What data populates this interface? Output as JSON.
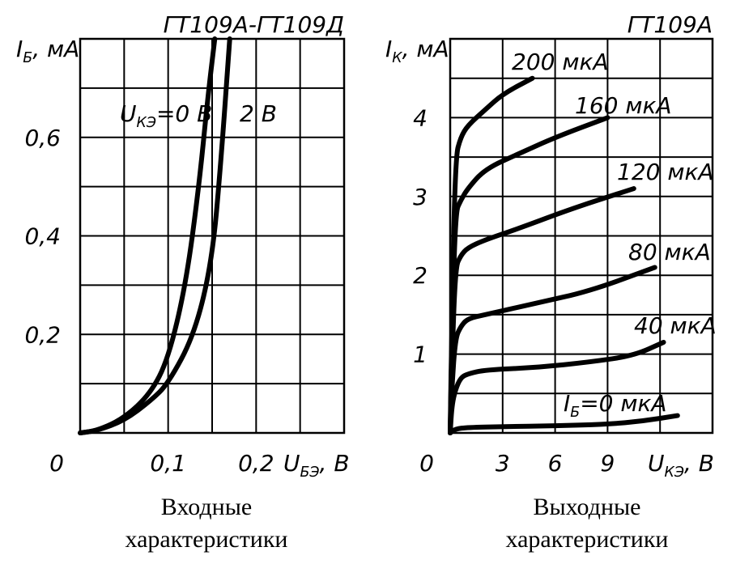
{
  "chart_data": [
    {
      "type": "line",
      "title": "ГТ109А-ГТ109Д",
      "caption_line1": "Входные",
      "caption_line2": "характеристики",
      "ylabel_main": "I",
      "ylabel_sub": "Б",
      "ylabel_unit": ", мА",
      "xlabel_main": "U",
      "xlabel_sub": "БЭ",
      "xlabel_unit": ", В",
      "origin_label": "0",
      "xlim": [
        0,
        0.3
      ],
      "ylim": [
        0,
        0.8
      ],
      "x_ticks": [
        {
          "value": 0.1,
          "label": "0,1"
        },
        {
          "value": 0.2,
          "label": "0,2"
        }
      ],
      "y_ticks": [
        {
          "value": 0.2,
          "label": "0,2"
        },
        {
          "value": 0.4,
          "label": "0,4"
        },
        {
          "value": 0.6,
          "label": "0,6"
        }
      ],
      "grid": true,
      "series": [
        {
          "name": "U_КЭ=0 В",
          "label_main": "U",
          "label_sub": "КЭ",
          "label_rest": "=0 В",
          "x": [
            0.0,
            0.02,
            0.05,
            0.08,
            0.1,
            0.12,
            0.135,
            0.145,
            0.153
          ],
          "y": [
            0.0,
            0.005,
            0.03,
            0.08,
            0.15,
            0.3,
            0.5,
            0.68,
            0.8
          ]
        },
        {
          "name": "2 В",
          "label_main": "2 В",
          "x": [
            0.0,
            0.02,
            0.05,
            0.08,
            0.1,
            0.13,
            0.15,
            0.16,
            0.17
          ],
          "y": [
            0.0,
            0.005,
            0.025,
            0.065,
            0.1,
            0.2,
            0.35,
            0.55,
            0.8
          ]
        }
      ]
    },
    {
      "type": "line",
      "title": "ГТ109А",
      "caption_line1": "Выходные",
      "caption_line2": "характеристики",
      "ylabel_main": "I",
      "ylabel_sub": "К",
      "ylabel_unit": ", мА",
      "xlabel_main": "U",
      "xlabel_sub": "КЭ",
      "xlabel_unit": ", В",
      "origin_label": "0",
      "xlim": [
        0,
        15
      ],
      "ylim": [
        0,
        5
      ],
      "x_ticks": [
        {
          "value": 3,
          "label": "3"
        },
        {
          "value": 6,
          "label": "6"
        },
        {
          "value": 9,
          "label": "9"
        }
      ],
      "y_ticks": [
        {
          "value": 1,
          "label": "1"
        },
        {
          "value": 2,
          "label": "2"
        },
        {
          "value": 3,
          "label": "3"
        },
        {
          "value": 4,
          "label": "4"
        }
      ],
      "grid": true,
      "series": [
        {
          "name": "200 мкА",
          "label_main": "200 мкА",
          "x": [
            0.0,
            0.1,
            0.3,
            0.6,
            1.0,
            2.0,
            3.0,
            4.7
          ],
          "y": [
            0.0,
            1.5,
            3.5,
            3.75,
            3.9,
            4.1,
            4.3,
            4.5
          ]
        },
        {
          "name": "160 мкА",
          "label_main": "160 мкА",
          "x": [
            0.0,
            0.1,
            0.3,
            0.6,
            1.0,
            2.0,
            4.0,
            6.0,
            9.0
          ],
          "y": [
            0.0,
            1.2,
            2.8,
            2.95,
            3.1,
            3.35,
            3.55,
            3.75,
            4.0
          ]
        },
        {
          "name": "120 мкА",
          "label_main": "120 мкА",
          "x": [
            0.0,
            0.1,
            0.3,
            0.6,
            1.0,
            2.0,
            4.0,
            7.0,
            10.5
          ],
          "y": [
            0.0,
            0.9,
            2.1,
            2.25,
            2.35,
            2.45,
            2.6,
            2.85,
            3.1
          ]
        },
        {
          "name": "80 мкА",
          "label_main": "80 мкА",
          "x": [
            0.0,
            0.1,
            0.3,
            0.6,
            1.0,
            2.0,
            5.0,
            8.0,
            11.7
          ],
          "y": [
            0.0,
            0.6,
            1.2,
            1.35,
            1.45,
            1.5,
            1.65,
            1.8,
            2.1
          ]
        },
        {
          "name": "40 мкА",
          "label_main": "40 мкА",
          "x": [
            0.0,
            0.1,
            0.3,
            0.6,
            1.0,
            2.0,
            5.0,
            8.0,
            10.5,
            12.2
          ],
          "y": [
            0.0,
            0.35,
            0.55,
            0.7,
            0.75,
            0.8,
            0.83,
            0.9,
            0.98,
            1.15
          ]
        },
        {
          "name": "I_Б=0 мкА",
          "label_main": "I",
          "label_sub": "Б",
          "label_rest": "=0 мкА",
          "x": [
            0.0,
            0.3,
            1.0,
            3.0,
            6.0,
            9.0,
            11.0,
            13.0
          ],
          "y": [
            0.0,
            0.05,
            0.07,
            0.08,
            0.09,
            0.11,
            0.15,
            0.22
          ]
        }
      ]
    }
  ]
}
